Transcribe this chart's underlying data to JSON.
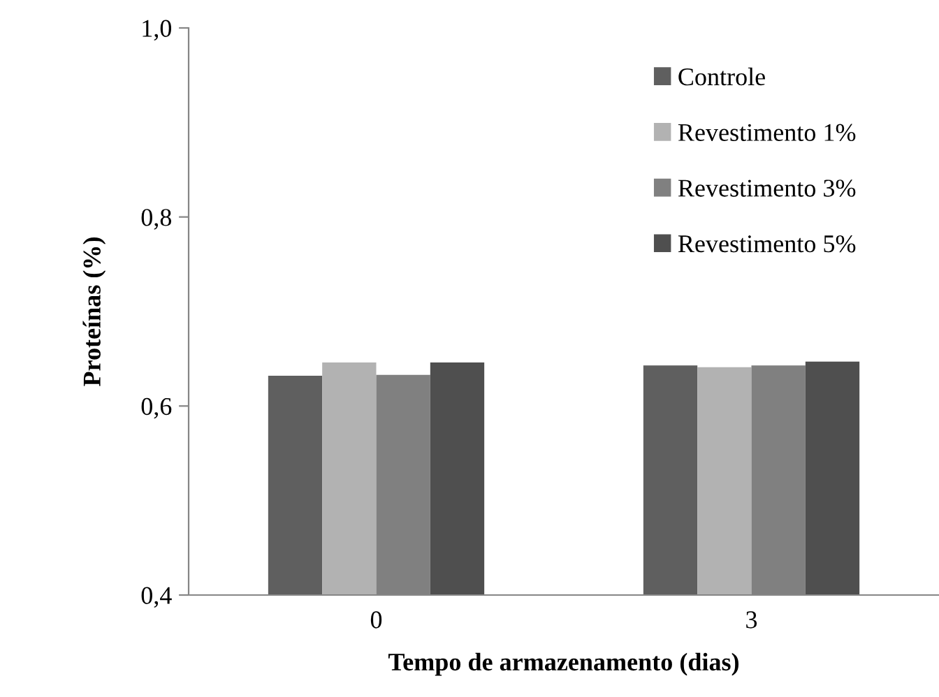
{
  "chart_data": {
    "type": "bar",
    "xlabel": "Tempo de armazenamento (dias)",
    "ylabel": "Proteínas (%)",
    "categories": [
      "0",
      "3"
    ],
    "series": [
      {
        "name": "Controle",
        "color": "#5f5f5f",
        "values": [
          0.632,
          0.643
        ]
      },
      {
        "name": "Revestimento 1%",
        "color": "#b2b2b2",
        "values": [
          0.646,
          0.641
        ]
      },
      {
        "name": "Revestimento 3%",
        "color": "#808080",
        "values": [
          0.633,
          0.643
        ]
      },
      {
        "name": "Revestimento 5%",
        "color": "#4f4f4f",
        "values": [
          0.646,
          0.647
        ]
      }
    ],
    "ylim": [
      0.4,
      1.0
    ],
    "yticks": [
      {
        "value": 0.4,
        "label": "0,4"
      },
      {
        "value": 0.6,
        "label": "0,6"
      },
      {
        "value": 0.8,
        "label": "0,8"
      },
      {
        "value": 1.0,
        "label": "1,0"
      }
    ],
    "grid": false,
    "legend": "top right"
  }
}
